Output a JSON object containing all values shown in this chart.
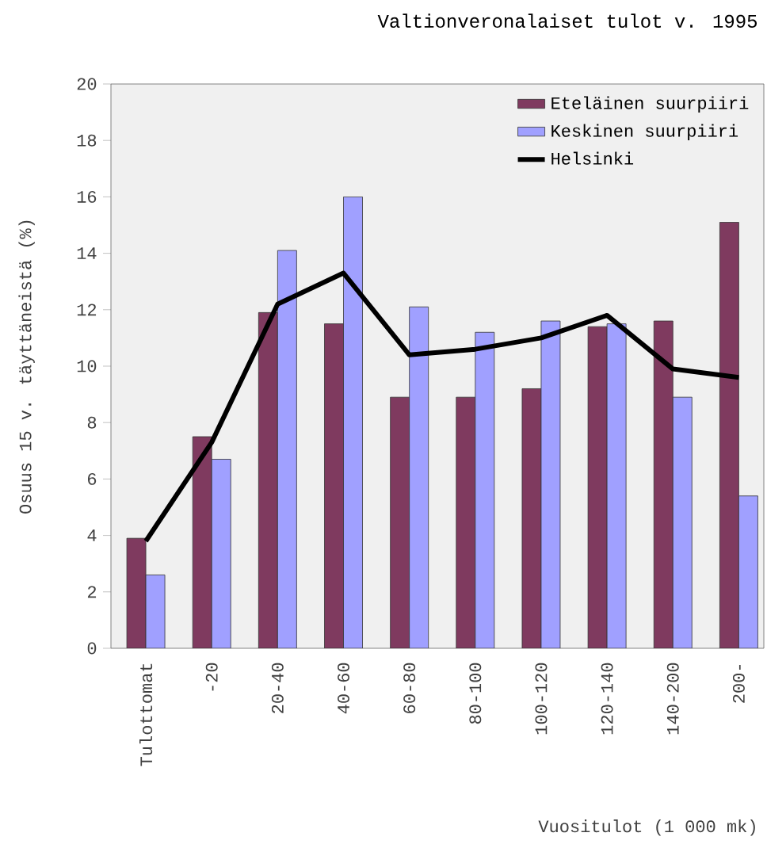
{
  "chart_data": {
    "type": "bar",
    "title": "Valtionveronalaiset tulot v. 1995",
    "xlabel": "Vuositulot (1 000 mk)",
    "ylabel": "Osuus 15 v. täyttäneistä (%)",
    "categories": [
      "Tulottomat",
      "-20",
      "20-40",
      "40-60",
      "60-80",
      "80-100",
      "100-120",
      "120-140",
      "140-200",
      "200-"
    ],
    "series": [
      {
        "name": "Eteläinen suurpiiri",
        "color": "#7f3a5f",
        "values": [
          3.9,
          7.5,
          11.9,
          11.5,
          8.9,
          8.9,
          9.2,
          11.4,
          11.6,
          15.1
        ]
      },
      {
        "name": "Keskinen suurpiiri",
        "color": "#a0a0ff",
        "values": [
          2.6,
          6.7,
          14.1,
          16.0,
          12.1,
          11.2,
          11.6,
          11.5,
          8.9,
          5.4
        ]
      },
      {
        "name": "Helsinki",
        "type": "line",
        "color": "#000000",
        "values": [
          3.8,
          7.3,
          12.2,
          13.3,
          10.4,
          10.6,
          11.0,
          11.8,
          9.9,
          9.6
        ]
      }
    ],
    "ylim": [
      0,
      20
    ],
    "yticks": [
      0,
      2,
      4,
      6,
      8,
      10,
      12,
      14,
      16,
      18,
      20
    ],
    "grid": false,
    "legend": "top right"
  }
}
